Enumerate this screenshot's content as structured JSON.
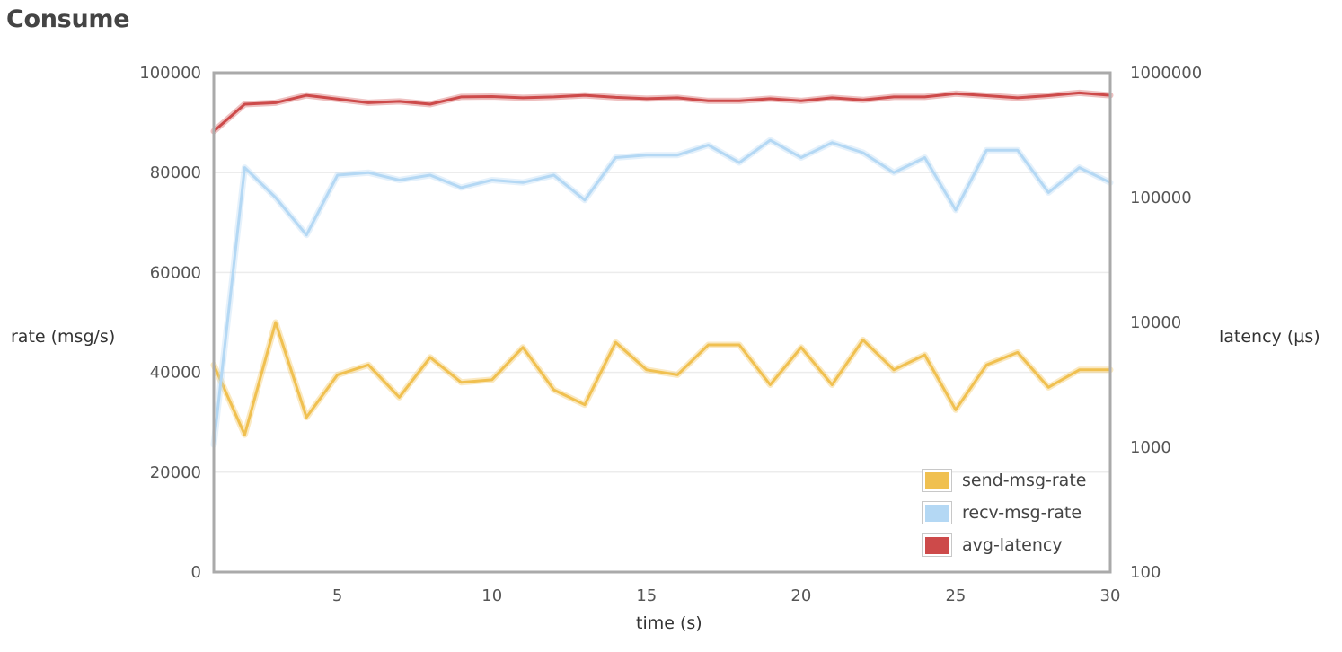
{
  "page": {
    "title": "Consume"
  },
  "chart_data": {
    "type": "line",
    "xlabel": "time (s)",
    "ylabel": "rate (msg/s)",
    "y2label": "latency (µs)",
    "xlim": [
      1,
      30
    ],
    "ylim": [
      0,
      100000
    ],
    "y2lim": [
      100,
      1000000
    ],
    "y2scale": "log",
    "x_ticks": [
      5,
      10,
      15,
      20,
      25,
      30
    ],
    "y_ticks": [
      0,
      20000,
      40000,
      60000,
      80000,
      100000
    ],
    "y2_ticks": [
      100,
      1000,
      10000,
      100000,
      1000000
    ],
    "grid": true,
    "legend_position": "bottom-right",
    "x": [
      1,
      2,
      3,
      4,
      5,
      6,
      7,
      8,
      9,
      10,
      11,
      12,
      13,
      14,
      15,
      16,
      17,
      18,
      19,
      20,
      21,
      22,
      23,
      24,
      25,
      26,
      27,
      28,
      29,
      30
    ],
    "series": [
      {
        "name": "send-msg-rate",
        "color": "#f0c050",
        "axis": "left",
        "values": [
          41500,
          27500,
          50000,
          31000,
          39500,
          41500,
          35000,
          43000,
          38000,
          38500,
          45000,
          36500,
          33500,
          46000,
          40500,
          39500,
          45500,
          45500,
          37500,
          45000,
          37500,
          46500,
          40500,
          43500,
          32500,
          41500,
          44000,
          37000,
          40500,
          40500
        ]
      },
      {
        "name": "recv-msg-rate",
        "color": "#b4d8f4",
        "axis": "left",
        "values": [
          25500,
          81000,
          75000,
          67500,
          79500,
          80000,
          78500,
          79500,
          77000,
          78500,
          78000,
          79500,
          74500,
          83000,
          83500,
          83500,
          85500,
          82000,
          86500,
          83000,
          86000,
          84000,
          80000,
          83000,
          72500,
          84500,
          84500,
          76000,
          81000,
          78000
        ]
      },
      {
        "name": "avg-latency",
        "color": "#cd4a4a",
        "axis": "right",
        "values": [
          340000,
          560000,
          575000,
          660000,
          615000,
          575000,
          590000,
          560000,
          640000,
          645000,
          630000,
          640000,
          660000,
          635000,
          620000,
          630000,
          595000,
          595000,
          620000,
          595000,
          630000,
          605000,
          640000,
          640000,
          680000,
          655000,
          630000,
          655000,
          690000,
          660000
        ]
      }
    ]
  }
}
